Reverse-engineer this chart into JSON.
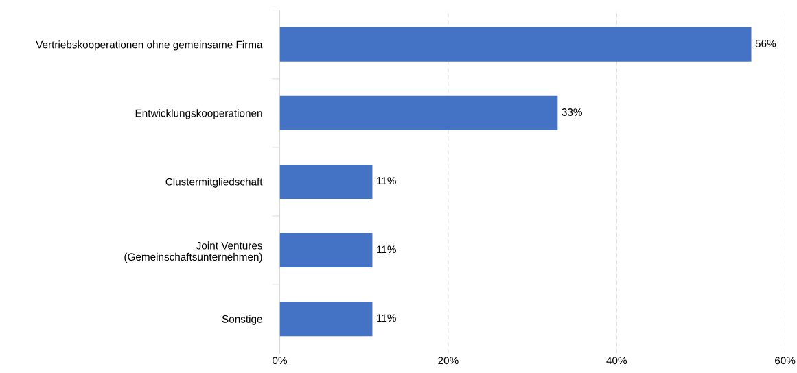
{
  "chart_data": {
    "type": "bar",
    "orientation": "horizontal",
    "categories": [
      "Vertriebskooperationen ohne gemeinsame Firma",
      "Entwicklungskooperationen",
      "Clustermitgliedschaft",
      "Joint Ventures\n(Gemeinschaftsunternehmen)",
      "Sonstige"
    ],
    "values": [
      56,
      33,
      11,
      11,
      11
    ],
    "value_labels": [
      "56%",
      "33%",
      "11%",
      "11%",
      "11%"
    ],
    "color": "#4472c4",
    "xlim": [
      0,
      60
    ],
    "xticks": [
      {
        "value": 0,
        "label": "0%"
      },
      {
        "value": 20,
        "label": "20%"
      },
      {
        "value": 40,
        "label": "40%"
      },
      {
        "value": 60,
        "label": "60%"
      }
    ],
    "grid": "x",
    "legend": false
  }
}
